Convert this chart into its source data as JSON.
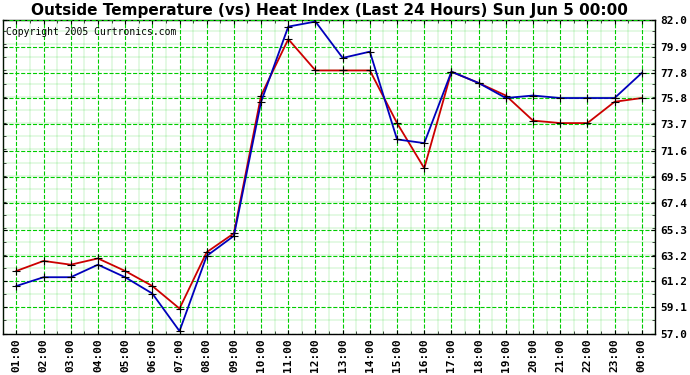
{
  "title": "Outside Temperature (vs) Heat Index (Last 24 Hours) Sun Jun 5 00:00",
  "copyright": "Copyright 2005 Curtronics.com",
  "x_labels": [
    "01:00",
    "02:00",
    "03:00",
    "04:00",
    "05:00",
    "06:00",
    "07:00",
    "08:00",
    "09:00",
    "10:00",
    "11:00",
    "12:00",
    "13:00",
    "14:00",
    "15:00",
    "16:00",
    "17:00",
    "18:00",
    "19:00",
    "20:00",
    "21:00",
    "22:00",
    "23:00",
    "00:00"
  ],
  "y_min": 57.0,
  "y_max": 82.0,
  "y_ticks": [
    57.0,
    59.1,
    61.2,
    63.2,
    65.3,
    67.4,
    69.5,
    71.6,
    73.7,
    75.8,
    77.8,
    79.9,
    82.0
  ],
  "y_tick_labels": [
    "57.0",
    "59.1",
    "61.2",
    "63.2",
    "65.3",
    "67.4",
    "69.5",
    "71.6",
    "73.7",
    "75.8",
    "77.8",
    "79.9",
    "82.0"
  ],
  "blue_data": [
    60.8,
    61.5,
    61.5,
    62.5,
    61.5,
    60.2,
    57.2,
    63.2,
    64.8,
    75.5,
    81.5,
    81.9,
    79.0,
    79.5,
    72.5,
    72.2,
    77.9,
    77.0,
    75.8,
    76.0,
    75.8,
    75.8,
    75.8,
    77.8
  ],
  "red_data": [
    62.0,
    62.8,
    62.5,
    63.0,
    62.0,
    60.8,
    59.0,
    63.5,
    65.0,
    76.0,
    80.5,
    78.0,
    78.0,
    78.0,
    73.8,
    70.2,
    77.9,
    77.0,
    76.0,
    74.0,
    73.8,
    73.8,
    75.5,
    75.8
  ],
  "blue_color": "#0000bb",
  "red_color": "#cc0000",
  "bg_color": "#ffffff",
  "grid_color": "#00cc00",
  "title_fontsize": 11,
  "tick_fontsize": 8,
  "copyright_fontsize": 7,
  "figwidth": 6.9,
  "figheight": 3.75,
  "dpi": 100
}
